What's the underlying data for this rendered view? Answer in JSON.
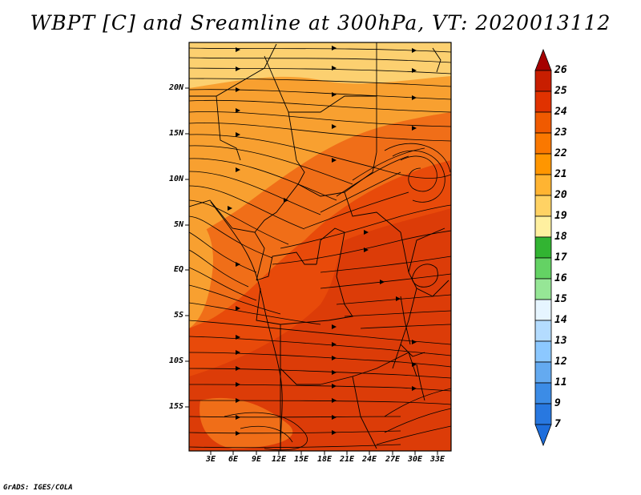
{
  "title": "WBPT [C] and Sreamline at 300hPa, VT: 2020013112",
  "credit": "GrADS: IGES/COLA",
  "lat_labels": [
    "20N",
    "15N",
    "10N",
    "5N",
    "EQ",
    "5S",
    "10S",
    "15S"
  ],
  "lon_labels": [
    "3E",
    "6E",
    "9E",
    "12E",
    "15E",
    "18E",
    "21E",
    "24E",
    "27E",
    "30E",
    "33E"
  ],
  "colorbar": {
    "labels": [
      "26",
      "25",
      "24",
      "23",
      "22",
      "21",
      "20",
      "19",
      "18",
      "17",
      "16",
      "15",
      "14",
      "13",
      "12",
      "11",
      "9",
      "7"
    ],
    "colors": [
      "#a50000",
      "#c81e00",
      "#e03200",
      "#f05a00",
      "#fa7800",
      "#ff9600",
      "#ffb432",
      "#ffd264",
      "#fff0a0",
      "#32b432",
      "#64d264",
      "#96e696",
      "#c8f0c8",
      "#e6f5ff",
      "#b4dcff",
      "#8cc8ff",
      "#64aaf0",
      "#3c8ce6",
      "#1e6edc"
    ]
  },
  "map_colors": {
    "bg": "#e84a0a",
    "warm": "#f06e18",
    "light": "#f8a030",
    "pale": "#fcd070",
    "deep": "#dc3c08"
  }
}
